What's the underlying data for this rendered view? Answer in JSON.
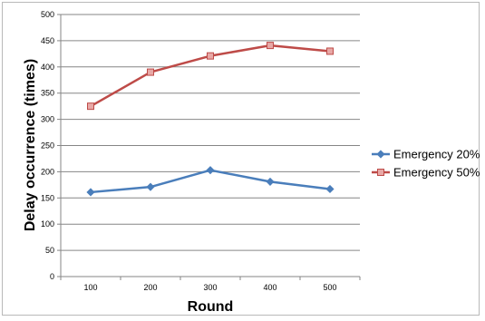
{
  "chart_data": {
    "type": "line",
    "xlabel": "Round",
    "ylabel": "Delay occurrence (times)",
    "categories": [
      "100",
      "200",
      "300",
      "400",
      "500"
    ],
    "ylim": [
      0,
      500
    ],
    "yticks": [
      0,
      50,
      100,
      150,
      200,
      250,
      300,
      350,
      400,
      450,
      500
    ],
    "grid": true,
    "legend_position": "right",
    "series": [
      {
        "name": "Emergency 20%",
        "color": "#4a7ebb",
        "marker": "diamond",
        "values": [
          161,
          171,
          203,
          181,
          167
        ]
      },
      {
        "name": "Emergency 50%",
        "color": "#be4b48",
        "marker": "square",
        "values": [
          325,
          390,
          421,
          441,
          430
        ]
      }
    ]
  }
}
